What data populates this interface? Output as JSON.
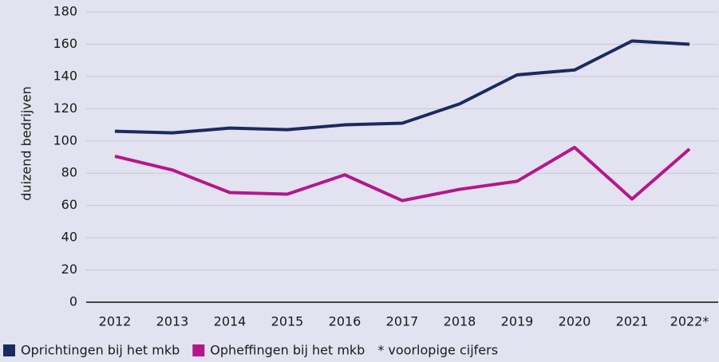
{
  "chart_data": {
    "type": "line",
    "ylabel": "duizend bedrijven",
    "categories": [
      "2012",
      "2013",
      "2014",
      "2015",
      "2016",
      "2017",
      "2018",
      "2019",
      "2020",
      "2021",
      "2022*"
    ],
    "series": [
      {
        "name": "Oprichtingen bij het mkb",
        "color": "#1b2a5e",
        "values": [
          106,
          105,
          108,
          107,
          110,
          111,
          123,
          141,
          144,
          162,
          160
        ]
      },
      {
        "name": "Opheffingen bij het mkb",
        "color": "#b5168a",
        "values": [
          90.5,
          82,
          68,
          67,
          79,
          63,
          70,
          75,
          96,
          64,
          95
        ]
      }
    ],
    "note": "* voorlopige cijfers",
    "ylim": [
      0,
      180
    ],
    "yticks": [
      0,
      20,
      40,
      60,
      80,
      100,
      120,
      140,
      160,
      180
    ],
    "grid": true
  }
}
